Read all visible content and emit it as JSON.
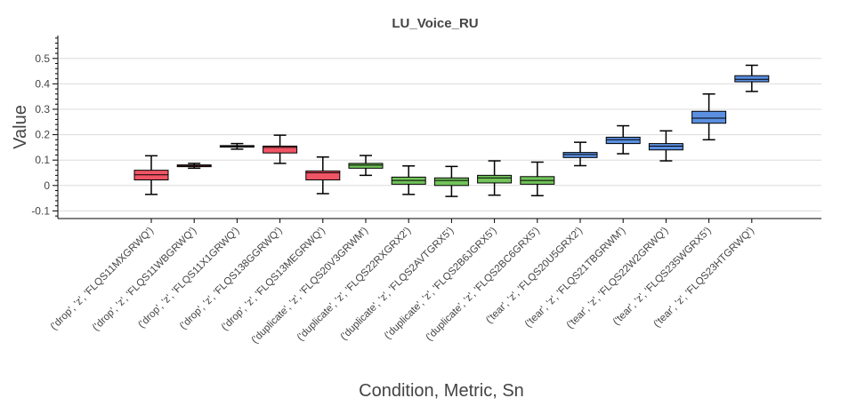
{
  "chart_data": {
    "type": "box",
    "title": "LU_Voice_RU",
    "xlabel": "Condition, Metric, Sn",
    "ylabel": "Value",
    "ylim": [
      -0.13,
      0.59
    ],
    "yticks": [
      -0.1,
      0,
      0.1,
      0.2,
      0.3,
      0.4,
      0.5
    ],
    "ytick_labels": [
      "-0.1",
      "0",
      "0.1",
      "0.2",
      "0.3",
      "0.4",
      "0.5"
    ],
    "grid": true,
    "colors": {
      "drop": "#f05565",
      "duplicate": "#72c35a",
      "tear": "#5b8fe0"
    },
    "categories": [
      "('drop', 'z', 'FLQS11MXGRWQ')",
      "('drop', 'z', 'FLQS11WBGRWQ')",
      "('drop', 'z', 'FLQS11X1GRWQ')",
      "('drop', 'z', 'FLQS138GGRWQ')",
      "('drop', 'z', 'FLQS13MEGRWQ')",
      "('duplicate', 'z', 'FLQS20V3GRWM')",
      "('duplicate', 'z', 'FLQS22RXGRX2')",
      "('duplicate', 'z', 'FLQS2AVTGRX5')",
      "('duplicate', 'z', 'FLQS2B6JGRX5')",
      "('duplicate', 'z', 'FLQS2BC6GRX5')",
      "('tear', 'z', 'FLQS20U5GRX2')",
      "('tear', 'z', 'FLQS21TBGRWM')",
      "('tear', 'z', 'FLQS22W2GRWQ')",
      "('tear', 'z', 'FLQS235WGRX5')",
      "('tear', 'z', 'FLQS23HTGRWQ')"
    ],
    "boxes": [
      {
        "group": "drop",
        "whislo": -0.035,
        "q1": 0.022,
        "med": 0.042,
        "q3": 0.06,
        "whishi": 0.117
      },
      {
        "group": "drop",
        "whislo": 0.068,
        "q1": 0.074,
        "med": 0.077,
        "q3": 0.081,
        "whishi": 0.087
      },
      {
        "group": "drop",
        "whislo": 0.143,
        "q1": 0.151,
        "med": 0.154,
        "q3": 0.157,
        "whishi": 0.165
      },
      {
        "group": "drop",
        "whislo": 0.087,
        "q1": 0.128,
        "med": 0.15,
        "q3": 0.155,
        "whishi": 0.198
      },
      {
        "group": "drop",
        "whislo": -0.032,
        "q1": 0.022,
        "med": 0.05,
        "q3": 0.057,
        "whishi": 0.112
      },
      {
        "group": "duplicate",
        "whislo": 0.04,
        "q1": 0.068,
        "med": 0.08,
        "q3": 0.087,
        "whishi": 0.118
      },
      {
        "group": "duplicate",
        "whislo": -0.035,
        "q1": 0.005,
        "med": 0.02,
        "q3": 0.033,
        "whishi": 0.077
      },
      {
        "group": "duplicate",
        "whislo": -0.043,
        "q1": 0.0,
        "med": 0.02,
        "q3": 0.03,
        "whishi": 0.075
      },
      {
        "group": "duplicate",
        "whislo": -0.038,
        "q1": 0.01,
        "med": 0.03,
        "q3": 0.04,
        "whishi": 0.097
      },
      {
        "group": "duplicate",
        "whislo": -0.04,
        "q1": 0.005,
        "med": 0.02,
        "q3": 0.035,
        "whishi": 0.092
      },
      {
        "group": "tear",
        "whislo": 0.078,
        "q1": 0.11,
        "med": 0.122,
        "q3": 0.13,
        "whishi": 0.17
      },
      {
        "group": "tear",
        "whislo": 0.125,
        "q1": 0.165,
        "med": 0.18,
        "q3": 0.19,
        "whishi": 0.235
      },
      {
        "group": "tear",
        "whislo": 0.097,
        "q1": 0.14,
        "med": 0.155,
        "q3": 0.165,
        "whishi": 0.215
      },
      {
        "group": "tear",
        "whislo": 0.18,
        "q1": 0.245,
        "med": 0.265,
        "q3": 0.292,
        "whishi": 0.36
      },
      {
        "group": "tear",
        "whislo": 0.37,
        "q1": 0.408,
        "med": 0.418,
        "q3": 0.432,
        "whishi": 0.473
      }
    ]
  }
}
